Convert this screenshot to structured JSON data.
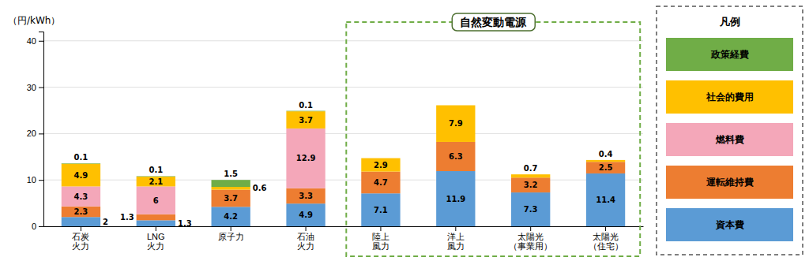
{
  "chart_data": {
    "type": "bar",
    "stacked": true,
    "categories": [
      "石炭\n火力",
      "LNG\n火力",
      "原子力",
      "石油\n火力",
      "陸上\n風力",
      "洋上\n風力",
      "太陽光\n（事業用）",
      "太陽光\n（住宅）"
    ],
    "series": [
      {
        "name": "資本費",
        "color": "#5B9BD5",
        "values": [
          2.0,
          1.3,
          4.2,
          4.9,
          7.1,
          11.9,
          7.3,
          11.4
        ]
      },
      {
        "name": "運転維持費",
        "color": "#ED7D31",
        "values": [
          2.3,
          1.3,
          3.7,
          3.3,
          4.7,
          6.3,
          3.2,
          2.5
        ]
      },
      {
        "name": "燃料費",
        "color": "#F4A7B9",
        "values": [
          4.3,
          6.0,
          0.0,
          12.9,
          0.0,
          0.0,
          0.0,
          0.0
        ]
      },
      {
        "name": "社会的費用",
        "color": "#FFC000",
        "values": [
          4.9,
          2.1,
          0.6,
          3.7,
          2.9,
          7.9,
          0.7,
          0.4
        ]
      },
      {
        "name": "政策経費",
        "color": "#70AD47",
        "values": [
          0.1,
          0.1,
          1.5,
          0.1,
          0.0,
          0.0,
          0.0,
          0.0
        ]
      }
    ],
    "ylim": [
      0,
      42
    ],
    "yticks": [
      0,
      10,
      20,
      30,
      40
    ],
    "ylabel": "（円/kWh）",
    "grid": true,
    "data_labels": true,
    "legend": "right",
    "legend_title": "凡例",
    "annotations": [
      {
        "text": "自然変動電源",
        "from": "陸上\n風力",
        "to": "太陽光\n（住宅）"
      }
    ]
  }
}
